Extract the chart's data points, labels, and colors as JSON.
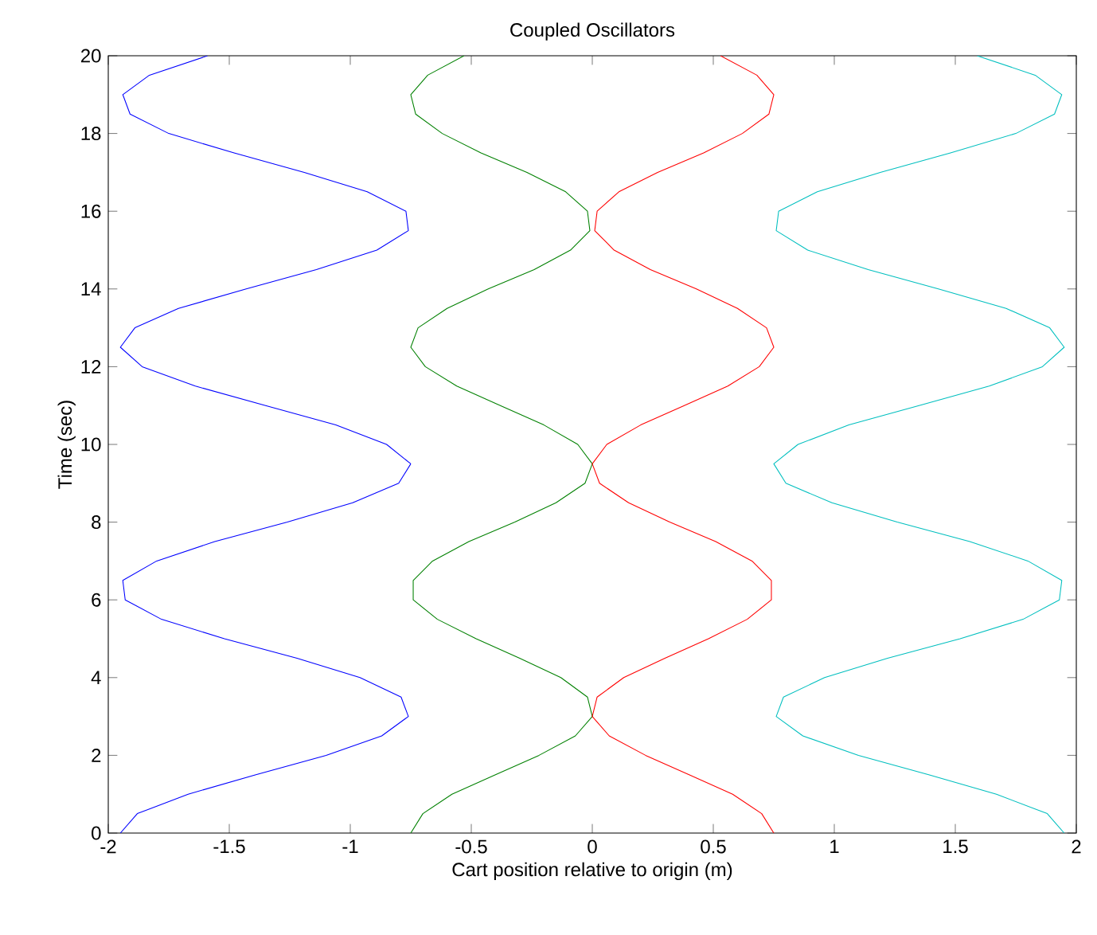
{
  "chart_data": {
    "type": "line",
    "title": "Coupled Oscillators",
    "xlabel": "Cart position relative to origin (m)",
    "ylabel": "Time (sec)",
    "xlim": [
      -2,
      2
    ],
    "ylim": [
      0,
      20
    ],
    "xticks": [
      -2,
      -1.5,
      -1,
      -0.5,
      0,
      0.5,
      1,
      1.5,
      2
    ],
    "yticks": [
      0,
      2,
      4,
      6,
      8,
      10,
      12,
      14,
      16,
      18,
      20
    ],
    "marker": "none",
    "line_style": "solid",
    "series": [
      {
        "color": "#0000ff",
        "x": [
          -1.95,
          -1.88,
          -1.67,
          -1.39,
          -1.1,
          -0.87,
          -0.76,
          -0.79,
          -0.96,
          -1.22,
          -1.52,
          -1.78,
          -1.93,
          -1.94,
          -1.8,
          -1.56,
          -1.26,
          -0.99,
          -0.8,
          -0.75,
          -0.85,
          -1.06,
          -1.35,
          -1.64,
          -1.86,
          -1.95,
          -1.89,
          -1.71,
          -1.43,
          -1.14,
          -0.89,
          -0.76,
          -0.77,
          -0.93,
          -1.19,
          -1.48,
          -1.75,
          -1.91,
          -1.94,
          -1.83,
          -1.59
        ],
        "values": [
          0,
          0.5,
          1,
          1.5,
          2,
          2.5,
          3,
          3.5,
          4,
          4.5,
          5,
          5.5,
          6,
          6.5,
          7,
          7.5,
          8,
          8.5,
          9,
          9.5,
          10,
          10.5,
          11,
          11.5,
          12,
          12.5,
          13,
          13.5,
          14,
          14.5,
          15,
          15.5,
          16,
          16.5,
          17,
          17.5,
          18,
          18.5,
          19,
          19.5,
          20
        ]
      },
      {
        "color": "#008000",
        "x": [
          -0.75,
          -0.7,
          -0.58,
          -0.4,
          -0.22,
          -0.07,
          0.0,
          -0.02,
          -0.13,
          -0.3,
          -0.48,
          -0.64,
          -0.74,
          -0.74,
          -0.66,
          -0.51,
          -0.32,
          -0.15,
          -0.03,
          0.0,
          -0.06,
          -0.2,
          -0.38,
          -0.56,
          -0.69,
          -0.75,
          -0.72,
          -0.6,
          -0.43,
          -0.24,
          -0.09,
          -0.01,
          -0.02,
          -0.11,
          -0.27,
          -0.46,
          -0.62,
          -0.73,
          -0.75,
          -0.68,
          -0.53
        ],
        "values": [
          0,
          0.5,
          1,
          1.5,
          2,
          2.5,
          3,
          3.5,
          4,
          4.5,
          5,
          5.5,
          6,
          6.5,
          7,
          7.5,
          8,
          8.5,
          9,
          9.5,
          10,
          10.5,
          11,
          11.5,
          12,
          12.5,
          13,
          13.5,
          14,
          14.5,
          15,
          15.5,
          16,
          16.5,
          17,
          17.5,
          18,
          18.5,
          19,
          19.5,
          20
        ]
      },
      {
        "color": "#ff0000",
        "x": [
          0.75,
          0.7,
          0.58,
          0.4,
          0.22,
          0.07,
          0.0,
          0.02,
          0.13,
          0.3,
          0.48,
          0.64,
          0.74,
          0.74,
          0.66,
          0.51,
          0.32,
          0.15,
          0.03,
          0.0,
          0.06,
          0.2,
          0.38,
          0.56,
          0.69,
          0.75,
          0.72,
          0.6,
          0.43,
          0.24,
          0.09,
          0.01,
          0.02,
          0.11,
          0.27,
          0.46,
          0.62,
          0.73,
          0.75,
          0.68,
          0.53
        ],
        "values": [
          0,
          0.5,
          1,
          1.5,
          2,
          2.5,
          3,
          3.5,
          4,
          4.5,
          5,
          5.5,
          6,
          6.5,
          7,
          7.5,
          8,
          8.5,
          9,
          9.5,
          10,
          10.5,
          11,
          11.5,
          12,
          12.5,
          13,
          13.5,
          14,
          14.5,
          15,
          15.5,
          16,
          16.5,
          17,
          17.5,
          18,
          18.5,
          19,
          19.5,
          20
        ]
      },
      {
        "color": "#00bfbf",
        "x": [
          1.95,
          1.88,
          1.67,
          1.39,
          1.1,
          0.87,
          0.76,
          0.79,
          0.96,
          1.22,
          1.52,
          1.78,
          1.93,
          1.94,
          1.8,
          1.56,
          1.26,
          0.99,
          0.8,
          0.75,
          0.85,
          1.06,
          1.35,
          1.64,
          1.86,
          1.95,
          1.89,
          1.71,
          1.43,
          1.14,
          0.89,
          0.76,
          0.77,
          0.93,
          1.19,
          1.48,
          1.75,
          1.91,
          1.94,
          1.83,
          1.59
        ],
        "values": [
          0,
          0.5,
          1,
          1.5,
          2,
          2.5,
          3,
          3.5,
          4,
          4.5,
          5,
          5.5,
          6,
          6.5,
          7,
          7.5,
          8,
          8.5,
          9,
          9.5,
          10,
          10.5,
          11,
          11.5,
          12,
          12.5,
          13,
          13.5,
          14,
          14.5,
          15,
          15.5,
          16,
          16.5,
          17,
          17.5,
          18,
          18.5,
          19,
          19.5,
          20
        ]
      }
    ]
  }
}
